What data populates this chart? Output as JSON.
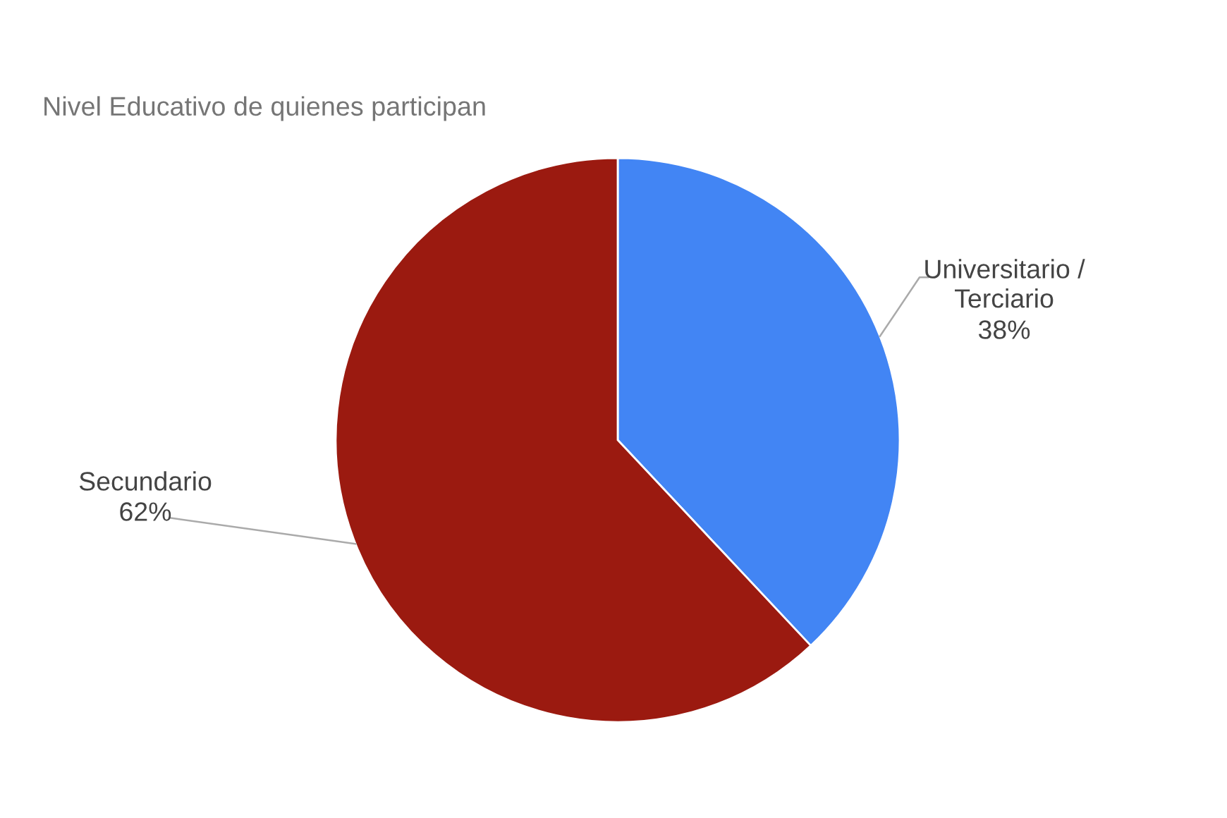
{
  "chart_data": {
    "type": "pie",
    "title": "Nivel Educativo de quienes participan",
    "categories": [
      "Universitario /\nTerciario",
      "Secundario"
    ],
    "values": [
      38,
      62
    ],
    "colors": [
      "#4285f4",
      "#9b1a10"
    ],
    "value_labels": [
      "38%",
      "62%"
    ]
  }
}
